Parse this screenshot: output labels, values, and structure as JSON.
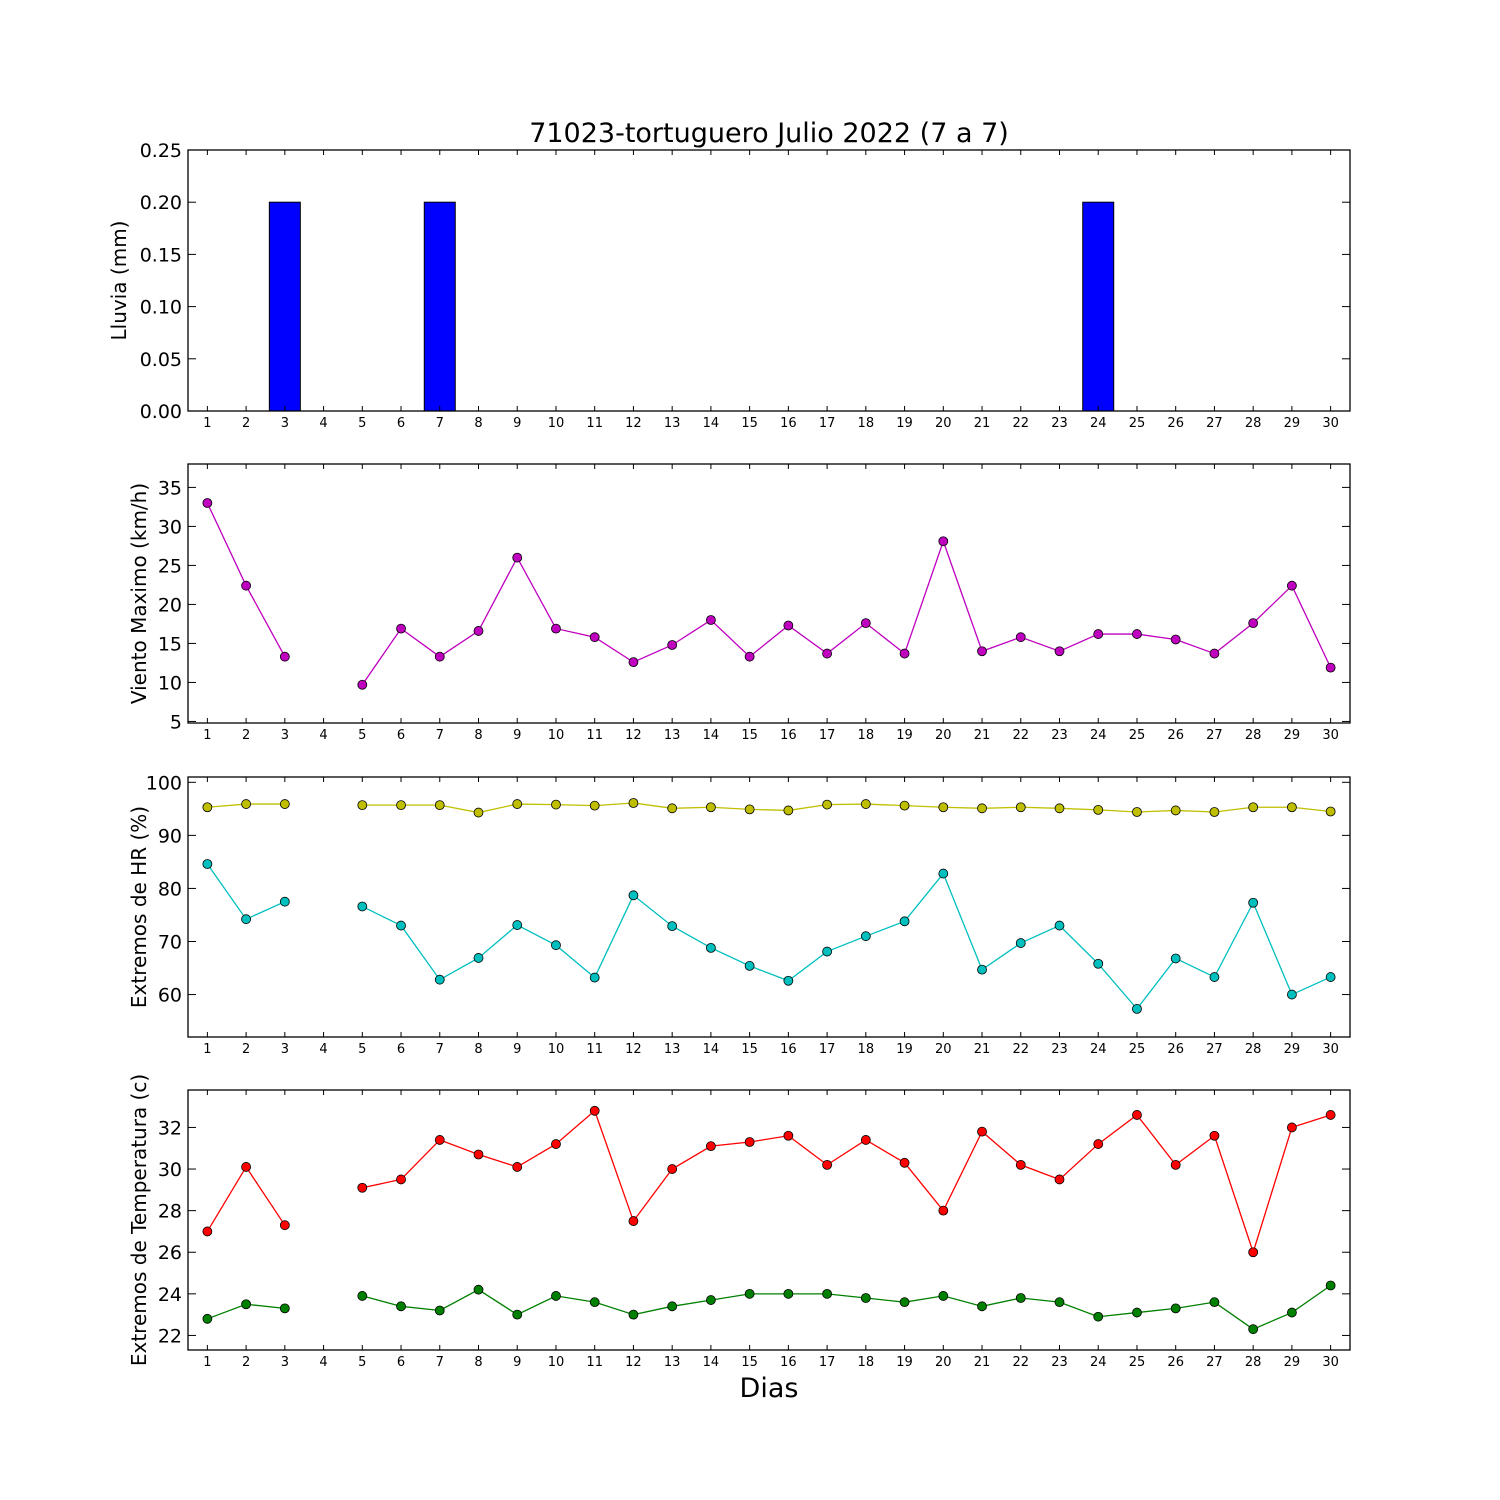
{
  "chart_data": [
    {
      "type": "bar",
      "title": "71023-tortuguero Julio 2022  (7 a 7)",
      "xlabel": "",
      "ylabel": "Lluvia (mm)",
      "ylim": [
        0,
        0.25
      ],
      "yticks": [
        "0.00",
        "0.05",
        "0.10",
        "0.15",
        "0.20",
        "0.25"
      ],
      "categories": [
        1,
        2,
        3,
        4,
        5,
        6,
        7,
        8,
        9,
        10,
        11,
        12,
        13,
        14,
        15,
        16,
        17,
        18,
        19,
        20,
        21,
        22,
        23,
        24,
        25,
        26,
        27,
        28,
        29,
        30
      ],
      "values": [
        0,
        0,
        0.2,
        0,
        0,
        0,
        0.2,
        0,
        0,
        0,
        0,
        0,
        0,
        0,
        0,
        0,
        0,
        0,
        0,
        0,
        0,
        0,
        0,
        0.2,
        0,
        0,
        0,
        0,
        0,
        0
      ],
      "colors": {
        "bar": "#0000ff"
      }
    },
    {
      "type": "line",
      "xlabel": "",
      "ylabel": "Viento Maximo (km/h)",
      "ylim": [
        4.8,
        38
      ],
      "yticks": [
        "5",
        "10",
        "15",
        "20",
        "25",
        "30",
        "35"
      ],
      "x": [
        1,
        2,
        3,
        4,
        5,
        6,
        7,
        8,
        9,
        10,
        11,
        12,
        13,
        14,
        15,
        16,
        17,
        18,
        19,
        20,
        21,
        22,
        23,
        24,
        25,
        26,
        27,
        28,
        29,
        30
      ],
      "series": [
        {
          "color": "#bf00bf",
          "values": [
            33.0,
            22.4,
            13.3,
            null,
            9.7,
            16.9,
            13.3,
            16.6,
            26.0,
            16.9,
            15.8,
            12.6,
            14.8,
            18.0,
            13.3,
            17.3,
            13.7,
            17.6,
            13.7,
            28.1,
            14.0,
            15.8,
            14.0,
            16.2,
            16.2,
            15.5,
            13.7,
            17.6,
            22.4,
            11.9
          ]
        }
      ]
    },
    {
      "type": "line",
      "xlabel": "",
      "ylabel": "Extremos de HR (%)",
      "ylim": [
        52,
        101
      ],
      "yticks": [
        "60",
        "70",
        "80",
        "90",
        "100"
      ],
      "x": [
        1,
        2,
        3,
        4,
        5,
        6,
        7,
        8,
        9,
        10,
        11,
        12,
        13,
        14,
        15,
        16,
        17,
        18,
        19,
        20,
        21,
        22,
        23,
        24,
        25,
        26,
        27,
        28,
        29,
        30
      ],
      "series": [
        {
          "color": "#bfbf00",
          "values": [
            95.3,
            95.9,
            95.9,
            null,
            95.7,
            95.7,
            95.7,
            94.3,
            95.9,
            95.8,
            95.6,
            96.1,
            95.1,
            95.3,
            94.9,
            94.7,
            95.8,
            95.9,
            95.6,
            95.3,
            95.1,
            95.3,
            95.1,
            94.8,
            94.4,
            94.7,
            94.4,
            95.3,
            95.3,
            94.5
          ]
        },
        {
          "color": "#00bfbf",
          "values": [
            84.6,
            74.2,
            77.5,
            null,
            76.6,
            73.0,
            62.8,
            66.9,
            73.1,
            69.3,
            63.2,
            78.7,
            72.9,
            68.8,
            65.4,
            62.6,
            68.1,
            71.0,
            73.8,
            82.8,
            64.7,
            69.7,
            73.0,
            65.8,
            57.3,
            66.8,
            63.3,
            77.3,
            60.0,
            63.3
          ]
        }
      ]
    },
    {
      "type": "line",
      "xlabel": "Dias",
      "ylabel": "Extremos de Temperatura (c)",
      "ylim": [
        21.3,
        33.8
      ],
      "yticks": [
        "22",
        "24",
        "26",
        "28",
        "30",
        "32"
      ],
      "x": [
        1,
        2,
        3,
        4,
        5,
        6,
        7,
        8,
        9,
        10,
        11,
        12,
        13,
        14,
        15,
        16,
        17,
        18,
        19,
        20,
        21,
        22,
        23,
        24,
        25,
        26,
        27,
        28,
        29,
        30
      ],
      "series": [
        {
          "color": "#ff0000",
          "values": [
            27.0,
            30.1,
            27.3,
            null,
            29.1,
            29.5,
            31.4,
            30.7,
            30.1,
            31.2,
            32.8,
            27.5,
            30.0,
            31.1,
            31.3,
            31.6,
            30.2,
            31.4,
            30.3,
            28.0,
            31.8,
            30.2,
            29.5,
            31.2,
            32.6,
            30.2,
            31.6,
            26.0,
            32.0,
            32.6
          ]
        },
        {
          "color": "#008000",
          "values": [
            22.8,
            23.5,
            23.3,
            null,
            23.9,
            23.4,
            23.2,
            24.2,
            23.0,
            23.9,
            23.6,
            23.0,
            23.4,
            23.7,
            24.0,
            24.0,
            24.0,
            23.8,
            23.6,
            23.9,
            23.4,
            23.8,
            23.6,
            22.9,
            23.1,
            23.3,
            23.6,
            22.3,
            23.1,
            24.4
          ]
        }
      ]
    }
  ]
}
